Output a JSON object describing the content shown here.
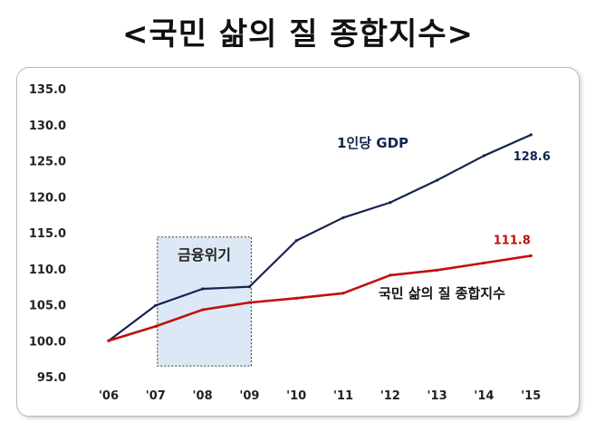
{
  "page": {
    "title": "<국민 삶의 질 종합지수>"
  },
  "colors": {
    "gdp_line": "#16244f",
    "quality_line": "#c0100d",
    "crisis_fill": "#dde8f6",
    "crisis_border": "#333333"
  },
  "chart_data": {
    "type": "line",
    "title": "<국민 삶의 질 종합지수>",
    "xlabel": "",
    "ylabel": "",
    "categories": [
      "'06",
      "'07",
      "'08",
      "'09",
      "'10",
      "'11",
      "'12",
      "'13",
      "'14",
      "'15"
    ],
    "ylim": [
      95.0,
      135.0
    ],
    "yticks": [
      "135.0",
      "130.0",
      "125.0",
      "120.0",
      "115.0",
      "110.0",
      "105.0",
      "100.0",
      "95.0"
    ],
    "grid": false,
    "series": [
      {
        "name": "1인당 GDP",
        "color": "#16244f",
        "values": [
          100.0,
          104.9,
          107.2,
          107.5,
          113.9,
          117.1,
          119.2,
          122.3,
          125.7,
          128.6
        ],
        "end_label": "128.6"
      },
      {
        "name": "국민 삶의 질 종합지수",
        "color": "#c0100d",
        "values": [
          100.0,
          102.0,
          104.3,
          105.3,
          105.9,
          106.6,
          109.1,
          109.8,
          110.8,
          111.8
        ],
        "end_label": "111.8"
      }
    ],
    "annotations": [
      {
        "text": "금융위기",
        "from": "'07",
        "to": "'09",
        "ymin": 96.5,
        "ymax": 114.4
      }
    ]
  }
}
